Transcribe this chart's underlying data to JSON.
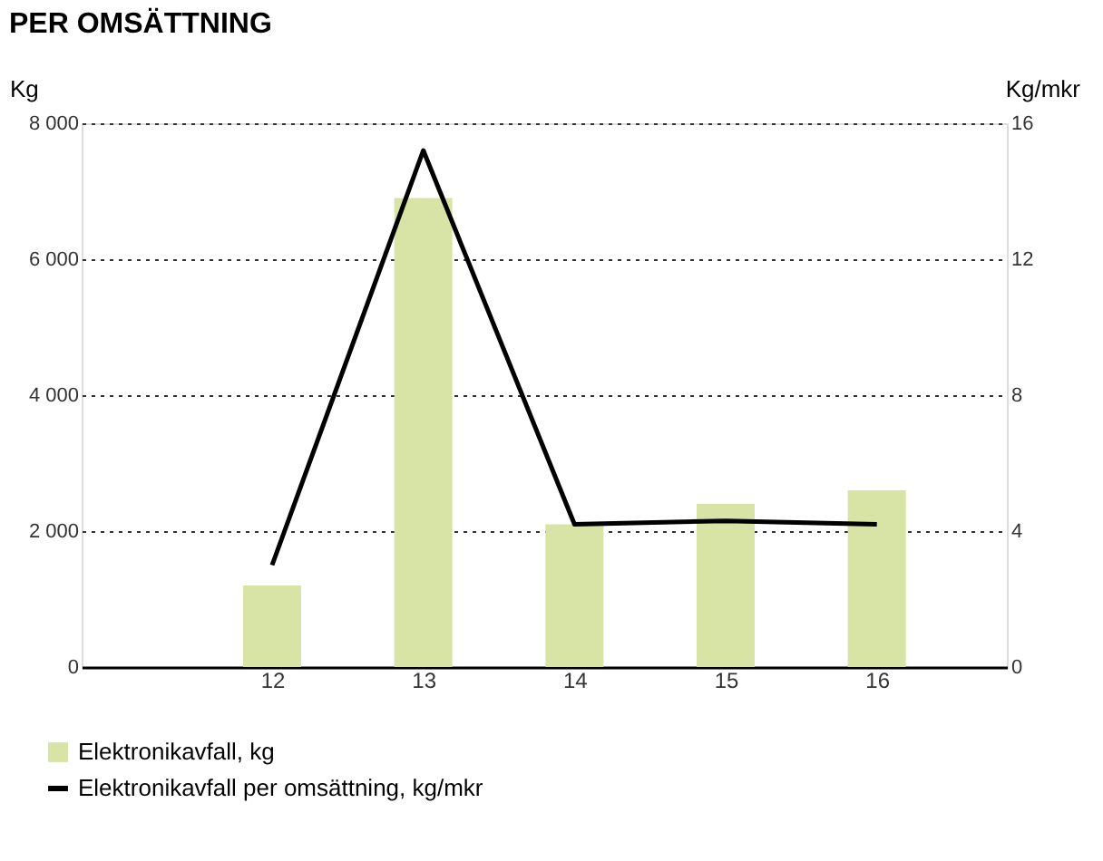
{
  "chart_data": {
    "type": "bar",
    "title": "PER OMSÄTTNING",
    "ylabel": "Kg",
    "y2label": "Kg/mkr",
    "categories": [
      "12",
      "13",
      "14",
      "15",
      "16"
    ],
    "series": [
      {
        "name": "Elektronikavfall, kg",
        "color": "#d8e4a6",
        "values": [
          1200,
          6900,
          2100,
          2400,
          2600
        ]
      },
      {
        "name": "Elektronikavfall per omsättning, kg/mkr",
        "color": "#000000",
        "type": "line",
        "axis": "y2",
        "values": [
          3.0,
          15.2,
          4.2,
          4.3,
          4.2
        ]
      }
    ],
    "ylim": [
      0,
      8000
    ],
    "yticks": [
      0,
      {
        "value": 2000,
        "label": "2 000"
      },
      {
        "value": 4000,
        "label": "4 000"
      },
      {
        "value": 6000,
        "label": "6 000"
      },
      {
        "value": 8000,
        "label": "8 000"
      }
    ],
    "y2lim": [
      0,
      16
    ],
    "y2ticks": [
      0,
      4,
      8,
      12,
      16
    ],
    "grid": "y",
    "legend": "bottom left",
    "line_style": "solid",
    "marker": "none"
  }
}
